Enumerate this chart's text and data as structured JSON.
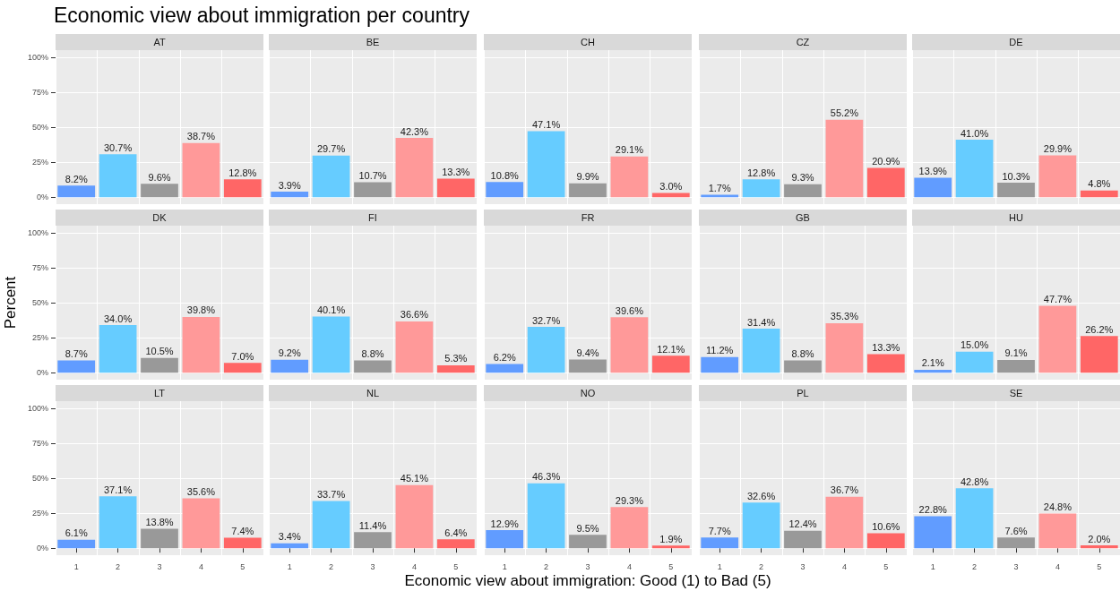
{
  "chart_data": [
    {
      "type": "other",
      "title": "Economic view about immigration per country"
    },
    {
      "type": "bar",
      "title": "AT",
      "categories": [
        "1",
        "2",
        "3",
        "4",
        "5"
      ],
      "values": [
        8.2,
        30.7,
        9.6,
        38.7,
        12.8
      ],
      "value_labels": [
        "8.2%",
        "30.7%",
        "9.6%",
        "38.7%",
        "12.8%"
      ],
      "colors": [
        "#619cff",
        "#66ccff",
        "#999999",
        "#ff9999",
        "#ff6666"
      ],
      "ylim": [
        -5,
        105
      ],
      "yticks": [
        {
          "value": 0,
          "label": "0%"
        },
        {
          "value": 25,
          "label": "25%"
        },
        {
          "value": 50,
          "label": "50%"
        },
        {
          "value": 75,
          "label": "75%"
        },
        {
          "value": 100,
          "label": "100%"
        }
      ],
      "grid": true,
      "tick_labels": "y"
    },
    {
      "type": "bar",
      "title": "BE",
      "categories": [
        "1",
        "2",
        "3",
        "4",
        "5"
      ],
      "values": [
        3.9,
        29.7,
        10.7,
        42.3,
        13.3
      ],
      "value_labels": [
        "3.9%",
        "29.7%",
        "10.7%",
        "42.3%",
        "13.3%"
      ],
      "colors": [
        "#619cff",
        "#66ccff",
        "#999999",
        "#ff9999",
        "#ff6666"
      ],
      "ylim": [
        -5,
        105
      ],
      "yticks": [
        {
          "value": 0,
          "label": null
        },
        {
          "value": 25,
          "label": null
        },
        {
          "value": 50,
          "label": null
        },
        {
          "value": 75,
          "label": null
        },
        {
          "value": 100,
          "label": null
        }
      ],
      "grid": true,
      "tick_labels": false
    },
    {
      "type": "bar",
      "title": "CH",
      "categories": [
        "1",
        "2",
        "3",
        "4",
        "5"
      ],
      "values": [
        10.8,
        47.1,
        9.9,
        29.1,
        3.0
      ],
      "value_labels": [
        "10.8%",
        "47.1%",
        "9.9%",
        "29.1%",
        "3.0%"
      ],
      "colors": [
        "#619cff",
        "#66ccff",
        "#999999",
        "#ff9999",
        "#ff6666"
      ],
      "ylim": [
        -5,
        105
      ],
      "yticks": [
        {
          "value": 0,
          "label": null
        },
        {
          "value": 25,
          "label": null
        },
        {
          "value": 50,
          "label": null
        },
        {
          "value": 75,
          "label": null
        },
        {
          "value": 100,
          "label": null
        }
      ],
      "grid": true,
      "tick_labels": false
    },
    {
      "type": "bar",
      "title": "CZ",
      "categories": [
        "1",
        "2",
        "3",
        "4",
        "5"
      ],
      "values": [
        1.7,
        12.8,
        9.3,
        55.2,
        20.9
      ],
      "value_labels": [
        "1.7%",
        "12.8%",
        "9.3%",
        "55.2%",
        "20.9%"
      ],
      "colors": [
        "#619cff",
        "#66ccff",
        "#999999",
        "#ff9999",
        "#ff6666"
      ],
      "ylim": [
        -5,
        105
      ],
      "yticks": [
        {
          "value": 0,
          "label": null
        },
        {
          "value": 25,
          "label": null
        },
        {
          "value": 50,
          "label": null
        },
        {
          "value": 75,
          "label": null
        },
        {
          "value": 100,
          "label": null
        }
      ],
      "grid": true,
      "tick_labels": false
    },
    {
      "type": "bar",
      "title": "DE",
      "categories": [
        "1",
        "2",
        "3",
        "4",
        "5"
      ],
      "values": [
        13.9,
        41.0,
        10.3,
        29.9,
        4.8
      ],
      "value_labels": [
        "13.9%",
        "41.0%",
        "10.3%",
        "29.9%",
        "4.8%"
      ],
      "colors": [
        "#619cff",
        "#66ccff",
        "#999999",
        "#ff9999",
        "#ff6666"
      ],
      "ylim": [
        -5,
        105
      ],
      "yticks": [
        {
          "value": 0,
          "label": null
        },
        {
          "value": 25,
          "label": null
        },
        {
          "value": 50,
          "label": null
        },
        {
          "value": 75,
          "label": null
        },
        {
          "value": 100,
          "label": null
        }
      ],
      "grid": true,
      "tick_labels": false
    },
    {
      "type": "bar",
      "title": "DK",
      "ylabel": "Percent",
      "categories": [
        "1",
        "2",
        "3",
        "4",
        "5"
      ],
      "values": [
        8.7,
        34.0,
        10.5,
        39.8,
        7.0
      ],
      "value_labels": [
        "8.7%",
        "34.0%",
        "10.5%",
        "39.8%",
        "7.0%"
      ],
      "colors": [
        "#619cff",
        "#66ccff",
        "#999999",
        "#ff9999",
        "#ff6666"
      ],
      "ylim": [
        -5,
        105
      ],
      "yticks": [
        {
          "value": 0,
          "label": "0%"
        },
        {
          "value": 25,
          "label": "25%"
        },
        {
          "value": 50,
          "label": "50%"
        },
        {
          "value": 75,
          "label": "75%"
        },
        {
          "value": 100,
          "label": "100%"
        }
      ],
      "grid": true,
      "tick_labels": "y"
    },
    {
      "type": "bar",
      "title": "FI",
      "categories": [
        "1",
        "2",
        "3",
        "4",
        "5"
      ],
      "values": [
        9.2,
        40.1,
        8.8,
        36.6,
        5.3
      ],
      "value_labels": [
        "9.2%",
        "40.1%",
        "8.8%",
        "36.6%",
        "5.3%"
      ],
      "colors": [
        "#619cff",
        "#66ccff",
        "#999999",
        "#ff9999",
        "#ff6666"
      ],
      "ylim": [
        -5,
        105
      ],
      "yticks": [
        {
          "value": 0,
          "label": null
        },
        {
          "value": 25,
          "label": null
        },
        {
          "value": 50,
          "label": null
        },
        {
          "value": 75,
          "label": null
        },
        {
          "value": 100,
          "label": null
        }
      ],
      "grid": true,
      "tick_labels": false
    },
    {
      "type": "bar",
      "title": "FR",
      "categories": [
        "1",
        "2",
        "3",
        "4",
        "5"
      ],
      "values": [
        6.2,
        32.7,
        9.4,
        39.6,
        12.1
      ],
      "value_labels": [
        "6.2%",
        "32.7%",
        "9.4%",
        "39.6%",
        "12.1%"
      ],
      "colors": [
        "#619cff",
        "#66ccff",
        "#999999",
        "#ff9999",
        "#ff6666"
      ],
      "ylim": [
        -5,
        105
      ],
      "yticks": [
        {
          "value": 0,
          "label": null
        },
        {
          "value": 25,
          "label": null
        },
        {
          "value": 50,
          "label": null
        },
        {
          "value": 75,
          "label": null
        },
        {
          "value": 100,
          "label": null
        }
      ],
      "grid": true,
      "tick_labels": false
    },
    {
      "type": "bar",
      "title": "GB",
      "categories": [
        "1",
        "2",
        "3",
        "4",
        "5"
      ],
      "values": [
        11.2,
        31.4,
        8.8,
        35.3,
        13.3
      ],
      "value_labels": [
        "11.2%",
        "31.4%",
        "8.8%",
        "35.3%",
        "13.3%"
      ],
      "colors": [
        "#619cff",
        "#66ccff",
        "#999999",
        "#ff9999",
        "#ff6666"
      ],
      "ylim": [
        -5,
        105
      ],
      "yticks": [
        {
          "value": 0,
          "label": null
        },
        {
          "value": 25,
          "label": null
        },
        {
          "value": 50,
          "label": null
        },
        {
          "value": 75,
          "label": null
        },
        {
          "value": 100,
          "label": null
        }
      ],
      "grid": true,
      "tick_labels": false
    },
    {
      "type": "bar",
      "title": "HU",
      "categories": [
        "1",
        "2",
        "3",
        "4",
        "5"
      ],
      "values": [
        2.1,
        15.0,
        9.1,
        47.7,
        26.2
      ],
      "value_labels": [
        "2.1%",
        "15.0%",
        "9.1%",
        "47.7%",
        "26.2%"
      ],
      "colors": [
        "#619cff",
        "#66ccff",
        "#999999",
        "#ff9999",
        "#ff6666"
      ],
      "ylim": [
        -5,
        105
      ],
      "yticks": [
        {
          "value": 0,
          "label": null
        },
        {
          "value": 25,
          "label": null
        },
        {
          "value": 50,
          "label": null
        },
        {
          "value": 75,
          "label": null
        },
        {
          "value": 100,
          "label": null
        }
      ],
      "grid": true,
      "tick_labels": false
    },
    {
      "type": "bar",
      "title": "LT",
      "categories": [
        "1",
        "2",
        "3",
        "4",
        "5"
      ],
      "values": [
        6.1,
        37.1,
        13.8,
        35.6,
        7.4
      ],
      "value_labels": [
        "6.1%",
        "37.1%",
        "13.8%",
        "35.6%",
        "7.4%"
      ],
      "colors": [
        "#619cff",
        "#66ccff",
        "#999999",
        "#ff9999",
        "#ff6666"
      ],
      "ylim": [
        -5,
        105
      ],
      "yticks": [
        {
          "value": 0,
          "label": "0%"
        },
        {
          "value": 25,
          "label": "25%"
        },
        {
          "value": 50,
          "label": "50%"
        },
        {
          "value": 75,
          "label": "75%"
        },
        {
          "value": 100,
          "label": "100%"
        }
      ],
      "grid": true
    },
    {
      "type": "bar",
      "title": "NL",
      "categories": [
        "1",
        "2",
        "3",
        "4",
        "5"
      ],
      "values": [
        3.4,
        33.7,
        11.4,
        45.1,
        6.4
      ],
      "value_labels": [
        "3.4%",
        "33.7%",
        "11.4%",
        "45.1%",
        "6.4%"
      ],
      "colors": [
        "#619cff",
        "#66ccff",
        "#999999",
        "#ff9999",
        "#ff6666"
      ],
      "ylim": [
        -5,
        105
      ],
      "yticks": [
        {
          "value": 0,
          "label": null
        },
        {
          "value": 25,
          "label": null
        },
        {
          "value": 50,
          "label": null
        },
        {
          "value": 75,
          "label": null
        },
        {
          "value": 100,
          "label": null
        }
      ],
      "grid": true,
      "tick_labels": "x"
    },
    {
      "type": "bar",
      "title": "NO",
      "xlabel": "Economic view about immigration: Good (1) to Bad (5)",
      "categories": [
        "1",
        "2",
        "3",
        "4",
        "5"
      ],
      "values": [
        12.9,
        46.3,
        9.5,
        29.3,
        1.9
      ],
      "value_labels": [
        "12.9%",
        "46.3%",
        "9.5%",
        "29.3%",
        "1.9%"
      ],
      "colors": [
        "#619cff",
        "#66ccff",
        "#999999",
        "#ff9999",
        "#ff6666"
      ],
      "ylim": [
        -5,
        105
      ],
      "yticks": [
        {
          "value": 0,
          "label": null
        },
        {
          "value": 25,
          "label": null
        },
        {
          "value": 50,
          "label": null
        },
        {
          "value": 75,
          "label": null
        },
        {
          "value": 100,
          "label": null
        }
      ],
      "grid": true,
      "tick_labels": "x"
    },
    {
      "type": "bar",
      "title": "PL",
      "categories": [
        "1",
        "2",
        "3",
        "4",
        "5"
      ],
      "values": [
        7.7,
        32.6,
        12.4,
        36.7,
        10.6
      ],
      "value_labels": [
        "7.7%",
        "32.6%",
        "12.4%",
        "36.7%",
        "10.6%"
      ],
      "colors": [
        "#619cff",
        "#66ccff",
        "#999999",
        "#ff9999",
        "#ff6666"
      ],
      "ylim": [
        -5,
        105
      ],
      "yticks": [
        {
          "value": 0,
          "label": null
        },
        {
          "value": 25,
          "label": null
        },
        {
          "value": 50,
          "label": null
        },
        {
          "value": 75,
          "label": null
        },
        {
          "value": 100,
          "label": null
        }
      ],
      "grid": true,
      "tick_labels": "x"
    },
    {
      "type": "bar",
      "title": "SE",
      "categories": [
        "1",
        "2",
        "3",
        "4",
        "5"
      ],
      "values": [
        22.8,
        42.8,
        7.6,
        24.8,
        2.0
      ],
      "value_labels": [
        "22.8%",
        "42.8%",
        "7.6%",
        "24.8%",
        "2.0%"
      ],
      "colors": [
        "#619cff",
        "#66ccff",
        "#999999",
        "#ff9999",
        "#ff6666"
      ],
      "ylim": [
        -5,
        105
      ],
      "yticks": [
        {
          "value": 0,
          "label": null
        },
        {
          "value": 25,
          "label": null
        },
        {
          "value": 50,
          "label": null
        },
        {
          "value": 75,
          "label": null
        },
        {
          "value": 100,
          "label": null
        }
      ],
      "grid": true,
      "tick_labels": "x"
    }
  ]
}
